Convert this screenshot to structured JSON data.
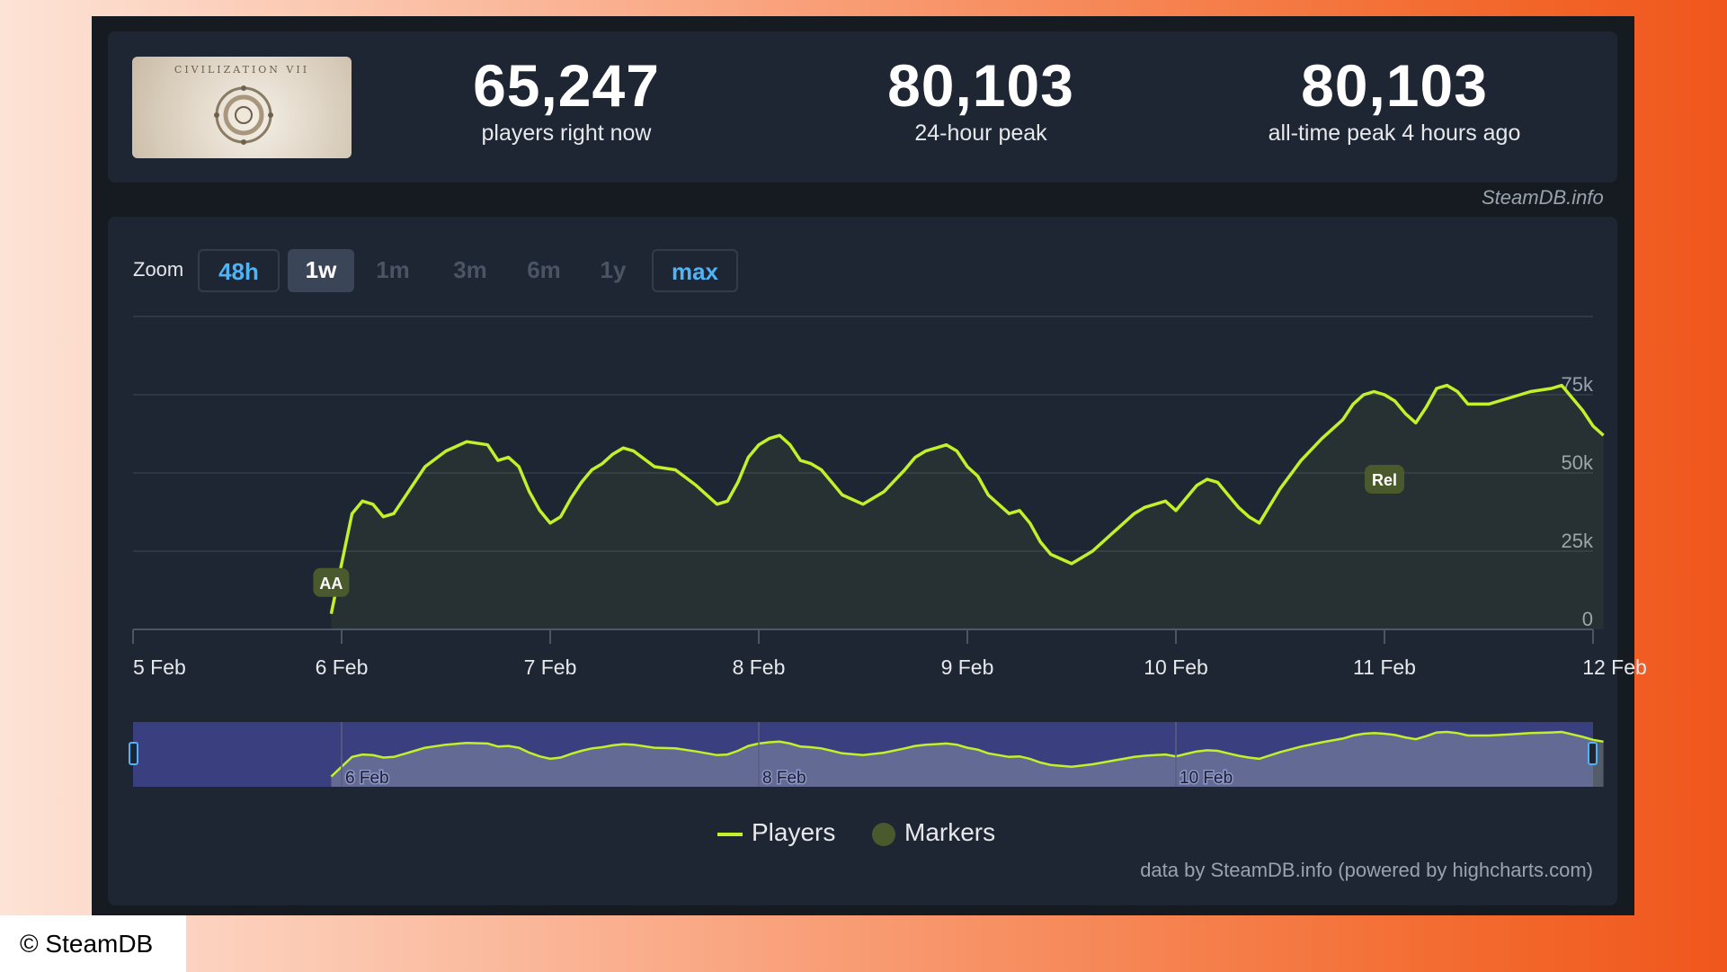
{
  "game": {
    "thumbnail_title": "CIVILIZATION VII"
  },
  "stats": [
    {
      "value": "65,247",
      "label": "players right now"
    },
    {
      "value": "80,103",
      "label": "24-hour peak"
    },
    {
      "value": "80,103",
      "label": "all-time peak 4 hours ago"
    }
  ],
  "credit": "SteamDB.info",
  "zoom": {
    "label": "Zoom",
    "buttons": [
      {
        "label": "48h",
        "state": "outlined"
      },
      {
        "label": "1w",
        "state": "active"
      },
      {
        "label": "1m",
        "state": "disabled"
      },
      {
        "label": "3m",
        "state": "disabled"
      },
      {
        "label": "6m",
        "state": "disabled"
      },
      {
        "label": "1y",
        "state": "disabled"
      },
      {
        "label": "max",
        "state": "outlined"
      }
    ]
  },
  "legend": {
    "players": "Players",
    "markers": "Markers"
  },
  "powered_by": "data by SteamDB.info (powered by highcharts.com)",
  "copyright": "© SteamDB",
  "colors": {
    "line": "#c2f02a",
    "marker": "#4a5a2c",
    "navigator_bg": "#3a3f80",
    "accent_blue": "#4fb3f5"
  },
  "chart_data": {
    "type": "line",
    "series": [
      {
        "name": "Players",
        "x": [
          5.95,
          6.0,
          6.05,
          6.1,
          6.15,
          6.2,
          6.25,
          6.3,
          6.35,
          6.4,
          6.5,
          6.6,
          6.7,
          6.75,
          6.8,
          6.85,
          6.9,
          6.95,
          7.0,
          7.05,
          7.1,
          7.15,
          7.2,
          7.25,
          7.3,
          7.35,
          7.4,
          7.5,
          7.6,
          7.7,
          7.8,
          7.85,
          7.9,
          7.95,
          8.0,
          8.05,
          8.1,
          8.15,
          8.2,
          8.25,
          8.3,
          8.35,
          8.4,
          8.5,
          8.6,
          8.7,
          8.75,
          8.8,
          8.85,
          8.9,
          8.95,
          9.0,
          9.05,
          9.1,
          9.15,
          9.2,
          9.25,
          9.3,
          9.35,
          9.4,
          9.5,
          9.6,
          9.7,
          9.75,
          9.8,
          9.85,
          9.9,
          9.95,
          10.0,
          10.05,
          10.1,
          10.15,
          10.2,
          10.25,
          10.3,
          10.35,
          10.4,
          10.5,
          10.6,
          10.7,
          10.8,
          10.85,
          10.9,
          10.95,
          11.0,
          11.05,
          11.1,
          11.15,
          11.2,
          11.25,
          11.3,
          11.35,
          11.4,
          11.5,
          11.6,
          11.7,
          11.8,
          11.85,
          11.9,
          11.95,
          12.0,
          12.05
        ],
        "y": [
          5000,
          21000,
          37000,
          41000,
          40000,
          36000,
          37000,
          42000,
          47000,
          52000,
          57000,
          60000,
          59000,
          54000,
          55000,
          52000,
          44000,
          38000,
          34000,
          36000,
          42000,
          47000,
          51000,
          53000,
          56000,
          58000,
          57000,
          52000,
          51000,
          46000,
          40000,
          41000,
          47000,
          55000,
          59000,
          61000,
          62000,
          59000,
          54000,
          53000,
          51000,
          47000,
          43000,
          40000,
          44000,
          51000,
          55000,
          57000,
          58000,
          59000,
          57000,
          52000,
          49000,
          43000,
          40000,
          37000,
          38000,
          34000,
          28000,
          24000,
          21000,
          25000,
          31000,
          34000,
          37000,
          39000,
          40000,
          41000,
          38000,
          42000,
          46000,
          48000,
          47000,
          43000,
          39000,
          36000,
          34000,
          45000,
          54000,
          61000,
          67000,
          72000,
          75000,
          76000,
          75000,
          73000,
          69000,
          66000,
          71000,
          77000,
          78000,
          76000,
          72000,
          72000,
          74000,
          76000,
          77000,
          78000,
          74000,
          70000,
          65000,
          62000
        ],
        "color": "#c2f02a"
      }
    ],
    "markers": [
      {
        "label": "AA",
        "x": 5.95,
        "y": 15000
      },
      {
        "label": "Rel",
        "x": 11.0,
        "y": 48000
      }
    ],
    "x_tick_labels": [
      "5 Feb",
      "6 Feb",
      "7 Feb",
      "8 Feb",
      "9 Feb",
      "10 Feb",
      "11 Feb",
      "12 Feb"
    ],
    "x_tick_values": [
      5,
      6,
      7,
      8,
      9,
      10,
      11,
      12
    ],
    "y_tick_labels": [
      "0",
      "25k",
      "50k",
      "75k"
    ],
    "y_tick_values": [
      0,
      25000,
      50000,
      75000
    ],
    "ylim": [
      0,
      100000
    ],
    "xlim": [
      5,
      12.0
    ],
    "grid": true,
    "navigator_labels": [
      "6 Feb",
      "8 Feb",
      "10 Feb"
    ],
    "navigator_label_values": [
      6,
      8,
      10
    ]
  }
}
